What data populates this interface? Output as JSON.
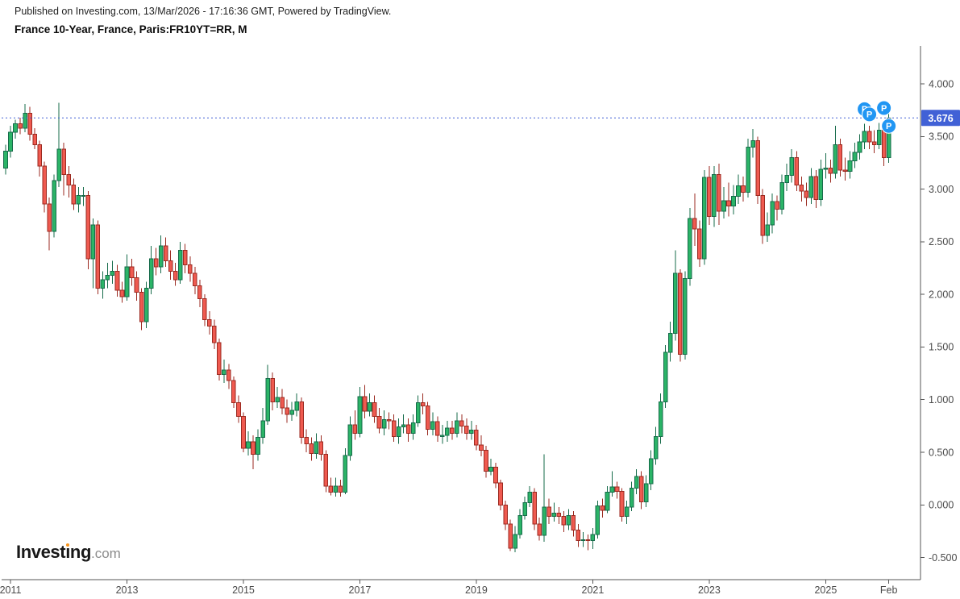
{
  "header": {
    "published_line": "Published on Investing.com, 13/Mar/2026 - 17:16:36 GMT, Powered by TradingView.",
    "instrument_line": "France 10-Year, France, Paris:FR10YT=RR, M"
  },
  "logo": {
    "brand": "Investing",
    "suffix": ".com",
    "dot_color": "#F7941D"
  },
  "chart_data": {
    "type": "candlestick",
    "title": "France 10-Year, France, Paris:FR10YT=RR, M",
    "instrument": "France 10-Year",
    "symbol": "Paris:FR10YT=RR",
    "interval": "M",
    "start_month": "2010-12",
    "end_month": "2026-02",
    "last_price": 3.676,
    "last_price_label": "3.676",
    "grid": false,
    "legend_position": "none",
    "ylim": [
      -0.71,
      4.36
    ],
    "y_ticks": [
      {
        "value": 4.0,
        "label": "4.000"
      },
      {
        "value": 3.5,
        "label": "3.500"
      },
      {
        "value": 3.0,
        "label": "3.000"
      },
      {
        "value": 2.5,
        "label": "2.500"
      },
      {
        "value": 2.0,
        "label": "2.000"
      },
      {
        "value": 1.5,
        "label": "1.500"
      },
      {
        "value": 1.0,
        "label": "1.000"
      },
      {
        "value": 0.5,
        "label": "0.500"
      },
      {
        "value": 0.0,
        "label": "0.000"
      },
      {
        "value": -0.5,
        "label": "-0.500"
      }
    ],
    "x_ticks": [
      {
        "month_index": 1,
        "label": "2011"
      },
      {
        "month_index": 25,
        "label": "2013"
      },
      {
        "month_index": 49,
        "label": "2015"
      },
      {
        "month_index": 73,
        "label": "2017"
      },
      {
        "month_index": 97,
        "label": "2019"
      },
      {
        "month_index": 121,
        "label": "2021"
      },
      {
        "month_index": 145,
        "label": "2023"
      },
      {
        "month_index": 169,
        "label": "2025"
      },
      {
        "month_index": 182,
        "label": "Feb"
      }
    ],
    "colors": {
      "up_fill": "#2BB467",
      "up_border": "#166B4A",
      "down_fill": "#EF5A50",
      "down_border": "#9B2A20",
      "price_line": "#4161D6",
      "alert_marker": "#2196F3",
      "axis_line": "#555555",
      "axis_text": "#4A4A4A"
    },
    "alert_markers": [
      {
        "month_index": 177,
        "price": 3.76,
        "label": "P"
      },
      {
        "month_index": 178,
        "price": 3.71,
        "label": "P"
      },
      {
        "month_index": 181,
        "price": 3.77,
        "label": "P"
      },
      {
        "month_index": 182,
        "price": 3.6,
        "label": "P"
      }
    ],
    "candles_format": [
      "open",
      "high",
      "low",
      "close"
    ],
    "candles": [
      [
        3.2,
        3.42,
        3.14,
        3.36
      ],
      [
        3.36,
        3.6,
        3.3,
        3.54
      ],
      [
        3.54,
        3.66,
        3.48,
        3.62
      ],
      [
        3.62,
        3.68,
        3.52,
        3.58
      ],
      [
        3.58,
        3.81,
        3.54,
        3.72
      ],
      [
        3.72,
        3.78,
        3.46,
        3.52
      ],
      [
        3.52,
        3.58,
        3.38,
        3.42
      ],
      [
        3.42,
        3.46,
        3.12,
        3.22
      ],
      [
        3.22,
        3.26,
        2.78,
        2.86
      ],
      [
        2.86,
        2.92,
        2.42,
        2.6
      ],
      [
        2.6,
        3.14,
        2.54,
        3.08
      ],
      [
        3.08,
        3.82,
        3.02,
        3.38
      ],
      [
        3.38,
        3.44,
        2.94,
        3.14
      ],
      [
        3.14,
        3.22,
        2.92,
        3.04
      ],
      [
        3.04,
        3.1,
        2.8,
        2.86
      ],
      [
        2.86,
        3.02,
        2.78,
        2.94
      ],
      [
        2.94,
        3.02,
        2.84,
        2.94
      ],
      [
        2.94,
        2.98,
        2.24,
        2.34
      ],
      [
        2.34,
        2.72,
        2.06,
        2.66
      ],
      [
        2.66,
        2.7,
        2.0,
        2.06
      ],
      [
        2.06,
        2.22,
        1.96,
        2.14
      ],
      [
        2.14,
        2.3,
        2.06,
        2.18
      ],
      [
        2.18,
        2.32,
        2.1,
        2.22
      ],
      [
        2.22,
        2.28,
        1.98,
        2.04
      ],
      [
        2.04,
        2.12,
        1.92,
        1.98
      ],
      [
        1.98,
        2.38,
        1.94,
        2.26
      ],
      [
        2.26,
        2.34,
        2.08,
        2.16
      ],
      [
        2.16,
        2.22,
        1.94,
        2.02
      ],
      [
        2.02,
        2.06,
        1.66,
        1.74
      ],
      [
        1.74,
        2.12,
        1.68,
        2.06
      ],
      [
        2.06,
        2.46,
        2.0,
        2.34
      ],
      [
        2.34,
        2.44,
        2.18,
        2.26
      ],
      [
        2.26,
        2.56,
        2.2,
        2.46
      ],
      [
        2.46,
        2.54,
        2.26,
        2.32
      ],
      [
        2.32,
        2.42,
        2.14,
        2.22
      ],
      [
        2.22,
        2.3,
        2.08,
        2.14
      ],
      [
        2.14,
        2.5,
        2.1,
        2.42
      ],
      [
        2.42,
        2.48,
        2.2,
        2.28
      ],
      [
        2.28,
        2.36,
        2.12,
        2.2
      ],
      [
        2.2,
        2.26,
        2.0,
        2.08
      ],
      [
        2.08,
        2.14,
        1.88,
        1.96
      ],
      [
        1.96,
        2.0,
        1.7,
        1.76
      ],
      [
        1.76,
        1.84,
        1.62,
        1.7
      ],
      [
        1.7,
        1.76,
        1.48,
        1.54
      ],
      [
        1.54,
        1.58,
        1.18,
        1.24
      ],
      [
        1.24,
        1.38,
        1.16,
        1.28
      ],
      [
        1.28,
        1.34,
        1.1,
        1.18
      ],
      [
        1.18,
        1.22,
        0.92,
        0.97
      ],
      [
        0.97,
        1.04,
        0.78,
        0.84
      ],
      [
        0.84,
        0.88,
        0.5,
        0.54
      ],
      [
        0.54,
        0.7,
        0.47,
        0.6
      ],
      [
        0.6,
        0.66,
        0.34,
        0.48
      ],
      [
        0.48,
        0.72,
        0.42,
        0.64
      ],
      [
        0.64,
        0.92,
        0.58,
        0.8
      ],
      [
        0.8,
        1.33,
        0.76,
        1.2
      ],
      [
        1.2,
        1.26,
        0.9,
        0.98
      ],
      [
        0.98,
        1.12,
        0.92,
        1.02
      ],
      [
        1.02,
        1.1,
        0.86,
        0.92
      ],
      [
        0.92,
        1.0,
        0.78,
        0.86
      ],
      [
        0.86,
        0.98,
        0.8,
        0.9
      ],
      [
        0.9,
        1.06,
        0.84,
        0.98
      ],
      [
        0.98,
        1.02,
        0.58,
        0.64
      ],
      [
        0.64,
        0.72,
        0.5,
        0.58
      ],
      [
        0.58,
        0.64,
        0.42,
        0.49
      ],
      [
        0.49,
        0.68,
        0.44,
        0.6
      ],
      [
        0.6,
        0.66,
        0.42,
        0.48
      ],
      [
        0.48,
        0.52,
        0.12,
        0.18
      ],
      [
        0.18,
        0.26,
        0.09,
        0.12
      ],
      [
        0.12,
        0.26,
        0.08,
        0.18
      ],
      [
        0.18,
        0.24,
        0.08,
        0.12
      ],
      [
        0.12,
        0.54,
        0.1,
        0.47
      ],
      [
        0.47,
        0.84,
        0.42,
        0.76
      ],
      [
        0.76,
        0.9,
        0.62,
        0.68
      ],
      [
        0.68,
        1.12,
        0.64,
        1.03
      ],
      [
        1.03,
        1.14,
        0.82,
        0.89
      ],
      [
        0.89,
        1.06,
        0.84,
        0.97
      ],
      [
        0.97,
        1.04,
        0.78,
        0.84
      ],
      [
        0.84,
        0.92,
        0.68,
        0.73
      ],
      [
        0.73,
        0.9,
        0.66,
        0.81
      ],
      [
        0.81,
        0.88,
        0.72,
        0.8
      ],
      [
        0.8,
        0.86,
        0.6,
        0.65
      ],
      [
        0.65,
        0.82,
        0.58,
        0.74
      ],
      [
        0.74,
        0.86,
        0.68,
        0.76
      ],
      [
        0.76,
        0.82,
        0.6,
        0.68
      ],
      [
        0.68,
        0.86,
        0.62,
        0.78
      ],
      [
        0.78,
        1.04,
        0.74,
        0.97
      ],
      [
        0.97,
        1.06,
        0.86,
        0.94
      ],
      [
        0.94,
        0.98,
        0.66,
        0.72
      ],
      [
        0.72,
        0.88,
        0.66,
        0.79
      ],
      [
        0.79,
        0.84,
        0.6,
        0.66
      ],
      [
        0.66,
        0.76,
        0.58,
        0.66
      ],
      [
        0.66,
        0.8,
        0.6,
        0.73
      ],
      [
        0.73,
        0.8,
        0.62,
        0.68
      ],
      [
        0.68,
        0.88,
        0.64,
        0.8
      ],
      [
        0.8,
        0.86,
        0.68,
        0.75
      ],
      [
        0.75,
        0.82,
        0.62,
        0.68
      ],
      [
        0.68,
        0.8,
        0.62,
        0.71
      ],
      [
        0.71,
        0.76,
        0.52,
        0.57
      ],
      [
        0.57,
        0.66,
        0.46,
        0.52
      ],
      [
        0.52,
        0.56,
        0.26,
        0.32
      ],
      [
        0.32,
        0.44,
        0.28,
        0.36
      ],
      [
        0.36,
        0.4,
        0.16,
        0.21
      ],
      [
        0.21,
        0.24,
        -0.05,
        0.0
      ],
      [
        0.0,
        0.04,
        -0.24,
        -0.18
      ],
      [
        -0.18,
        -0.14,
        -0.44,
        -0.41
      ],
      [
        -0.41,
        -0.2,
        -0.45,
        -0.28
      ],
      [
        -0.28,
        -0.04,
        -0.32,
        -0.1
      ],
      [
        -0.1,
        0.08,
        -0.14,
        0.02
      ],
      [
        0.02,
        0.18,
        -0.02,
        0.12
      ],
      [
        0.12,
        0.16,
        -0.24,
        -0.18
      ],
      [
        -0.18,
        -0.12,
        -0.34,
        -0.29
      ],
      [
        -0.29,
        0.48,
        -0.35,
        -0.02
      ],
      [
        -0.02,
        0.06,
        -0.18,
        -0.11
      ],
      [
        -0.11,
        0.02,
        -0.16,
        -0.08
      ],
      [
        -0.08,
        -0.02,
        -0.18,
        -0.11
      ],
      [
        -0.11,
        -0.06,
        -0.26,
        -0.19
      ],
      [
        -0.19,
        -0.04,
        -0.24,
        -0.1
      ],
      [
        -0.1,
        -0.06,
        -0.3,
        -0.24
      ],
      [
        -0.24,
        -0.18,
        -0.4,
        -0.34
      ],
      [
        -0.34,
        -0.26,
        -0.4,
        -0.33
      ],
      [
        -0.33,
        -0.28,
        -0.43,
        -0.34
      ],
      [
        -0.34,
        -0.22,
        -0.42,
        -0.28
      ],
      [
        -0.28,
        0.04,
        -0.32,
        -0.01
      ],
      [
        -0.01,
        0.06,
        -0.12,
        -0.05
      ],
      [
        -0.05,
        0.18,
        -0.08,
        0.12
      ],
      [
        0.12,
        0.32,
        0.08,
        0.17
      ],
      [
        0.17,
        0.22,
        0.06,
        0.13
      ],
      [
        0.13,
        0.16,
        -0.16,
        -0.11
      ],
      [
        -0.11,
        0.04,
        -0.18,
        -0.02
      ],
      [
        -0.02,
        0.22,
        -0.06,
        0.16
      ],
      [
        0.16,
        0.34,
        0.1,
        0.27
      ],
      [
        0.27,
        0.32,
        -0.04,
        0.03
      ],
      [
        0.03,
        0.28,
        -0.02,
        0.2
      ],
      [
        0.2,
        0.52,
        0.14,
        0.44
      ],
      [
        0.44,
        0.74,
        0.38,
        0.65
      ],
      [
        0.65,
        1.06,
        0.58,
        0.98
      ],
      [
        0.98,
        1.52,
        0.92,
        1.45
      ],
      [
        1.45,
        1.74,
        1.36,
        1.63
      ],
      [
        1.63,
        2.42,
        1.56,
        2.2
      ],
      [
        2.2,
        2.24,
        1.36,
        1.43
      ],
      [
        1.43,
        2.22,
        1.38,
        2.15
      ],
      [
        2.15,
        2.82,
        2.08,
        2.72
      ],
      [
        2.72,
        2.96,
        2.46,
        2.62
      ],
      [
        2.62,
        2.7,
        2.26,
        2.34
      ],
      [
        2.34,
        3.18,
        2.28,
        3.11
      ],
      [
        3.11,
        3.22,
        2.66,
        2.74
      ],
      [
        2.74,
        3.22,
        2.64,
        3.14
      ],
      [
        3.14,
        3.24,
        2.66,
        2.79
      ],
      [
        2.79,
        3.02,
        2.72,
        2.89
      ],
      [
        2.89,
        3.06,
        2.74,
        2.84
      ],
      [
        2.84,
        3.04,
        2.76,
        2.93
      ],
      [
        2.93,
        3.14,
        2.86,
        3.03
      ],
      [
        3.03,
        3.12,
        2.88,
        2.97
      ],
      [
        2.97,
        3.48,
        2.92,
        3.4
      ],
      [
        3.4,
        3.57,
        3.3,
        3.46
      ],
      [
        3.46,
        3.5,
        2.86,
        2.94
      ],
      [
        2.94,
        3.0,
        2.48,
        2.56
      ],
      [
        2.56,
        2.78,
        2.5,
        2.66
      ],
      [
        2.66,
        2.96,
        2.58,
        2.88
      ],
      [
        2.88,
        2.94,
        2.7,
        2.81
      ],
      [
        2.81,
        3.14,
        2.76,
        3.06
      ],
      [
        3.06,
        3.24,
        2.98,
        3.13
      ],
      [
        3.13,
        3.38,
        3.06,
        3.3
      ],
      [
        3.3,
        3.36,
        2.98,
        3.04
      ],
      [
        3.04,
        3.12,
        2.88,
        2.98
      ],
      [
        2.98,
        3.06,
        2.84,
        2.92
      ],
      [
        2.92,
        3.2,
        2.86,
        3.12
      ],
      [
        3.12,
        3.18,
        2.82,
        2.9
      ],
      [
        2.9,
        3.28,
        2.84,
        3.19
      ],
      [
        3.19,
        3.34,
        3.1,
        3.2
      ],
      [
        3.2,
        3.28,
        3.06,
        3.15
      ],
      [
        3.15,
        3.6,
        3.1,
        3.42
      ],
      [
        3.42,
        3.48,
        3.12,
        3.18
      ],
      [
        3.18,
        3.3,
        3.08,
        3.17
      ],
      [
        3.17,
        3.36,
        3.1,
        3.27
      ],
      [
        3.27,
        3.44,
        3.2,
        3.35
      ],
      [
        3.35,
        3.52,
        3.28,
        3.45
      ],
      [
        3.45,
        3.62,
        3.38,
        3.55
      ],
      [
        3.55,
        3.6,
        3.38,
        3.45
      ],
      [
        3.45,
        3.56,
        3.34,
        3.42
      ],
      [
        3.42,
        3.63,
        3.38,
        3.56
      ],
      [
        3.56,
        3.65,
        3.22,
        3.3
      ],
      [
        3.3,
        3.72,
        3.25,
        3.676
      ]
    ]
  }
}
